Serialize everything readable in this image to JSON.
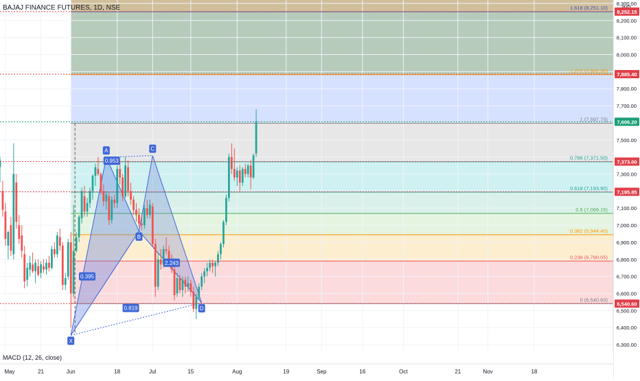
{
  "header": {
    "symbol_title": "BAJAJ FINANCE FUTURES, 1D, NSE"
  },
  "currency": "INR",
  "macd_label": "MACD (12, 26, close)",
  "colors": {
    "up": "#26a69a",
    "down": "#ef5350",
    "price_tag_red": "#e0404a",
    "price_tag_green": "#1b9e78",
    "pattern": "#3d66d6"
  },
  "chart_data": {
    "type": "candlestick",
    "y_axis": {
      "ticks": [
        6300,
        6400,
        6500,
        6600,
        6700,
        6800,
        6900,
        7000,
        7100,
        7200,
        7300,
        7400,
        7500,
        7600,
        7700,
        7800,
        7900,
        8000,
        8100,
        8200,
        8300
      ],
      "tick_labels": [
        "6,300.00",
        "6,400.00",
        "6,500.00",
        "6,600.00",
        "6,700.00",
        "6,800.00",
        "6,900.00",
        "7,000.00",
        "7,100.00",
        "7,200.00",
        "7,300.00",
        "7,400.00",
        "7,500.00",
        "7,600.00",
        "7,700.00",
        "7,800.00",
        "7,900.00",
        "8,000.00",
        "8,100.00",
        "8,200.00",
        "8,300.00"
      ],
      "range": [
        6260,
        8320
      ]
    },
    "x_axis": {
      "labels": [
        {
          "text": "May",
          "day": -13
        },
        {
          "text": "21",
          "day": 0
        },
        {
          "text": "Jun",
          "day": 11
        },
        {
          "text": "18",
          "day": 28
        },
        {
          "text": "Jul",
          "day": 41
        },
        {
          "text": "15",
          "day": 55
        },
        {
          "text": "Aug",
          "day": 72
        },
        {
          "text": "19",
          "day": 90
        },
        {
          "text": "Sep",
          "day": 103
        },
        {
          "text": "16",
          "day": 118
        },
        {
          "text": "Oct",
          "day": 133
        },
        {
          "text": "21",
          "day": 153
        },
        {
          "text": "Nov",
          "day": 164
        },
        {
          "text": "18",
          "day": 181
        }
      ],
      "range": [
        -15,
        210
      ]
    },
    "price_tags": [
      {
        "value": 8252.15,
        "label": "8,252.15",
        "color": "red",
        "line": "dotted"
      },
      {
        "value": 7885.4,
        "label": "7,885.40",
        "color": "red",
        "line": "dotted"
      },
      {
        "value": 7606.2,
        "label": "7,606.20",
        "color": "green",
        "line": "dotted-green"
      },
      {
        "value": 7373.0,
        "label": "7,373.00",
        "color": "red",
        "line": "dotted"
      },
      {
        "value": 7195.85,
        "label": "7,195.85",
        "color": "red",
        "line": "dotted"
      },
      {
        "value": 6540.6,
        "label": "6,540.60",
        "color": "red",
        "line": "dotted"
      }
    ],
    "fib_levels": [
      {
        "label": "1.618 (8,251.10)",
        "value": 8251.1,
        "line": "#3d50b4"
      },
      {
        "label": "1.272 (7,882.30)",
        "value": 7882.3,
        "line": "#ff9800"
      },
      {
        "label": "1 (7,597.75)",
        "value": 7597.75,
        "line": "#808080"
      },
      {
        "label": "0.786 (7,371.50)",
        "value": 7371.5,
        "line": "#26a69a"
      },
      {
        "label": "0.618 (7,193.90)",
        "value": 7193.9,
        "line": "#26a69a"
      },
      {
        "label": "0.5 (7,069.15)",
        "value": 7069.15,
        "line": "#4caf50"
      },
      {
        "label": "0.382 (6,944.40)",
        "value": 6944.4,
        "line": "#ff9800"
      },
      {
        "label": "0.236 (6,790.05)",
        "value": 6790.05,
        "line": "#ef5350"
      },
      {
        "label": "0 (6,540.60)",
        "value": 6540.6,
        "line": "#808080"
      }
    ],
    "fib_zones": [
      {
        "from": 8251.1,
        "to": 8320,
        "color": "#c9b48a"
      },
      {
        "from": 7882.3,
        "to": 8251.1,
        "color": "#a9c2ae"
      },
      {
        "from": 7597.75,
        "to": 7882.3,
        "color": "#cfdcff"
      },
      {
        "from": 7371.5,
        "to": 7597.75,
        "color": "#e3e3e3"
      },
      {
        "from": 7193.9,
        "to": 7371.5,
        "color": "#c8efef"
      },
      {
        "from": 7069.15,
        "to": 7193.9,
        "color": "#d2efe6"
      },
      {
        "from": 6944.4,
        "to": 7069.15,
        "color": "#e1f2dc"
      },
      {
        "from": 6790.05,
        "to": 6944.4,
        "color": "#fdebc8"
      },
      {
        "from": 6540.6,
        "to": 6790.05,
        "color": "#fbd5d6"
      }
    ],
    "fib_start_day": 11,
    "pattern_points": [
      {
        "label": "X",
        "day": 11,
        "value": 6355
      },
      {
        "label": "A",
        "day": 24,
        "value": 7398
      },
      {
        "label": "B",
        "day": 36,
        "value": 6965
      },
      {
        "label": "C",
        "day": 41,
        "value": 7408
      },
      {
        "label": "D",
        "day": 59,
        "value": 6545
      }
    ],
    "pattern_ratios": [
      {
        "label": "0.395",
        "day": 17,
        "value": 6700
      },
      {
        "label": "0.953",
        "day": 26,
        "value": 7378
      },
      {
        "label": "2.243",
        "day": 48,
        "value": 6780
      },
      {
        "label": "0.819",
        "day": 33,
        "value": 6515
      }
    ],
    "candles": [
      {
        "d": -15,
        "o": 7340,
        "h": 7400,
        "l": 7250,
        "c": 7380
      },
      {
        "d": -14,
        "o": 7200,
        "h": 7260,
        "l": 7050,
        "c": 7090
      },
      {
        "d": -13,
        "o": 7080,
        "h": 7130,
        "l": 6880,
        "c": 6920
      },
      {
        "d": -12,
        "o": 6880,
        "h": 6970,
        "l": 6800,
        "c": 6960
      },
      {
        "d": -11,
        "o": 7000,
        "h": 7050,
        "l": 6820,
        "c": 6850
      },
      {
        "d": -10,
        "o": 6830,
        "h": 7480,
        "l": 6800,
        "c": 7300
      },
      {
        "d": -9,
        "o": 7250,
        "h": 7300,
        "l": 6980,
        "c": 7020
      },
      {
        "d": -8,
        "o": 7000,
        "h": 7060,
        "l": 6890,
        "c": 6920
      },
      {
        "d": -7,
        "o": 6940,
        "h": 7000,
        "l": 6810,
        "c": 6850
      },
      {
        "d": -6,
        "o": 6830,
        "h": 6880,
        "l": 6630,
        "c": 6670
      },
      {
        "d": -5,
        "o": 6680,
        "h": 6780,
        "l": 6640,
        "c": 6750
      },
      {
        "d": -4,
        "o": 6740,
        "h": 6820,
        "l": 6700,
        "c": 6780
      },
      {
        "d": -3,
        "o": 6770,
        "h": 6840,
        "l": 6720,
        "c": 6730
      },
      {
        "d": -2,
        "o": 6730,
        "h": 6800,
        "l": 6660,
        "c": 6780
      },
      {
        "d": -1,
        "o": 6760,
        "h": 6800,
        "l": 6700,
        "c": 6710
      },
      {
        "d": 0,
        "o": 6720,
        "h": 6790,
        "l": 6690,
        "c": 6770
      },
      {
        "d": 1,
        "o": 6760,
        "h": 6800,
        "l": 6720,
        "c": 6740
      },
      {
        "d": 2,
        "o": 6740,
        "h": 6800,
        "l": 6710,
        "c": 6780
      },
      {
        "d": 3,
        "o": 6780,
        "h": 6820,
        "l": 6730,
        "c": 6750
      },
      {
        "d": 4,
        "o": 6750,
        "h": 6880,
        "l": 6740,
        "c": 6860
      },
      {
        "d": 5,
        "o": 6860,
        "h": 6900,
        "l": 6810,
        "c": 6830
      },
      {
        "d": 6,
        "o": 6830,
        "h": 6960,
        "l": 6810,
        "c": 6940
      },
      {
        "d": 7,
        "o": 6930,
        "h": 6980,
        "l": 6850,
        "c": 6880
      },
      {
        "d": 8,
        "o": 6880,
        "h": 6900,
        "l": 6620,
        "c": 6650
      },
      {
        "d": 9,
        "o": 6650,
        "h": 6720,
        "l": 6620,
        "c": 6690
      },
      {
        "d": 10,
        "o": 6700,
        "h": 6920,
        "l": 6680,
        "c": 6900
      },
      {
        "d": 11,
        "o": 6900,
        "h": 6960,
        "l": 6400,
        "c": 6600
      },
      {
        "d": 12,
        "o": 6600,
        "h": 7120,
        "l": 6580,
        "c": 6850
      },
      {
        "d": 13,
        "o": 6850,
        "h": 6960,
        "l": 6840,
        "c": 6930
      },
      {
        "d": 14,
        "o": 6930,
        "h": 7060,
        "l": 6900,
        "c": 7050
      },
      {
        "d": 15,
        "o": 7040,
        "h": 7220,
        "l": 7010,
        "c": 7200
      },
      {
        "d": 16,
        "o": 7170,
        "h": 7230,
        "l": 7050,
        "c": 7080
      },
      {
        "d": 17,
        "o": 7080,
        "h": 7160,
        "l": 7050,
        "c": 7130
      },
      {
        "d": 18,
        "o": 7130,
        "h": 7220,
        "l": 7100,
        "c": 7200
      },
      {
        "d": 19,
        "o": 7200,
        "h": 7300,
        "l": 7150,
        "c": 7290
      },
      {
        "d": 20,
        "o": 7290,
        "h": 7360,
        "l": 7230,
        "c": 7340
      },
      {
        "d": 21,
        "o": 7330,
        "h": 7400,
        "l": 7290,
        "c": 7300
      },
      {
        "d": 22,
        "o": 7300,
        "h": 7310,
        "l": 7180,
        "c": 7200
      },
      {
        "d": 23,
        "o": 7200,
        "h": 7240,
        "l": 7110,
        "c": 7140
      },
      {
        "d": 24,
        "o": 7140,
        "h": 7200,
        "l": 7090,
        "c": 7180
      },
      {
        "d": 25,
        "o": 7170,
        "h": 7190,
        "l": 7000,
        "c": 7030
      },
      {
        "d": 26,
        "o": 7030,
        "h": 7170,
        "l": 7010,
        "c": 7150
      },
      {
        "d": 27,
        "o": 7150,
        "h": 7180,
        "l": 7100,
        "c": 7130
      },
      {
        "d": 28,
        "o": 7130,
        "h": 7350,
        "l": 7100,
        "c": 7330
      },
      {
        "d": 29,
        "o": 7330,
        "h": 7380,
        "l": 7240,
        "c": 7280
      },
      {
        "d": 30,
        "o": 7280,
        "h": 7300,
        "l": 7140,
        "c": 7170
      },
      {
        "d": 31,
        "o": 7170,
        "h": 7400,
        "l": 7160,
        "c": 7350
      },
      {
        "d": 32,
        "o": 7340,
        "h": 7380,
        "l": 7170,
        "c": 7200
      },
      {
        "d": 33,
        "o": 7200,
        "h": 7250,
        "l": 7120,
        "c": 7150
      },
      {
        "d": 34,
        "o": 7150,
        "h": 7170,
        "l": 7060,
        "c": 7090
      },
      {
        "d": 35,
        "o": 7090,
        "h": 7130,
        "l": 7020,
        "c": 7060
      },
      {
        "d": 36,
        "o": 7060,
        "h": 7100,
        "l": 6990,
        "c": 7010
      },
      {
        "d": 37,
        "o": 7010,
        "h": 7060,
        "l": 6970,
        "c": 7000
      },
      {
        "d": 38,
        "o": 7000,
        "h": 7120,
        "l": 6980,
        "c": 7100
      },
      {
        "d": 39,
        "o": 7100,
        "h": 7150,
        "l": 7040,
        "c": 7060
      },
      {
        "d": 40,
        "o": 7060,
        "h": 7150,
        "l": 7040,
        "c": 7120
      },
      {
        "d": 41,
        "o": 7110,
        "h": 7130,
        "l": 6870,
        "c": 6890
      },
      {
        "d": 42,
        "o": 6890,
        "h": 6920,
        "l": 6580,
        "c": 6640
      },
      {
        "d": 43,
        "o": 6640,
        "h": 6840,
        "l": 6620,
        "c": 6800
      },
      {
        "d": 44,
        "o": 6800,
        "h": 6860,
        "l": 6740,
        "c": 6770
      },
      {
        "d": 45,
        "o": 6770,
        "h": 6880,
        "l": 6750,
        "c": 6860
      },
      {
        "d": 46,
        "o": 6860,
        "h": 6930,
        "l": 6830,
        "c": 6850
      },
      {
        "d": 47,
        "o": 6850,
        "h": 6880,
        "l": 6780,
        "c": 6800
      },
      {
        "d": 48,
        "o": 6800,
        "h": 6830,
        "l": 6720,
        "c": 6740
      },
      {
        "d": 49,
        "o": 6740,
        "h": 6760,
        "l": 6560,
        "c": 6590
      },
      {
        "d": 50,
        "o": 6600,
        "h": 6720,
        "l": 6580,
        "c": 6690
      },
      {
        "d": 51,
        "o": 6690,
        "h": 6710,
        "l": 6600,
        "c": 6620
      },
      {
        "d": 52,
        "o": 6620,
        "h": 6700,
        "l": 6580,
        "c": 6680
      },
      {
        "d": 53,
        "o": 6680,
        "h": 6700,
        "l": 6600,
        "c": 6640
      },
      {
        "d": 54,
        "o": 6640,
        "h": 6700,
        "l": 6610,
        "c": 6660
      },
      {
        "d": 55,
        "o": 6660,
        "h": 6680,
        "l": 6580,
        "c": 6610
      },
      {
        "d": 56,
        "o": 6610,
        "h": 6640,
        "l": 6490,
        "c": 6510
      },
      {
        "d": 57,
        "o": 6510,
        "h": 6600,
        "l": 6450,
        "c": 6580
      },
      {
        "d": 58,
        "o": 6580,
        "h": 6660,
        "l": 6560,
        "c": 6640
      },
      {
        "d": 59,
        "o": 6640,
        "h": 6720,
        "l": 6620,
        "c": 6700
      },
      {
        "d": 60,
        "o": 6700,
        "h": 6750,
        "l": 6660,
        "c": 6730
      },
      {
        "d": 61,
        "o": 6730,
        "h": 6780,
        "l": 6700,
        "c": 6750
      },
      {
        "d": 62,
        "o": 6750,
        "h": 6800,
        "l": 6730,
        "c": 6780
      },
      {
        "d": 63,
        "o": 6780,
        "h": 6800,
        "l": 6720,
        "c": 6760
      },
      {
        "d": 64,
        "o": 6760,
        "h": 6790,
        "l": 6700,
        "c": 6780
      },
      {
        "d": 65,
        "o": 6780,
        "h": 6850,
        "l": 6760,
        "c": 6830
      },
      {
        "d": 66,
        "o": 6830,
        "h": 6900,
        "l": 6800,
        "c": 6890
      },
      {
        "d": 67,
        "o": 6890,
        "h": 7030,
        "l": 6870,
        "c": 7020
      },
      {
        "d": 68,
        "o": 7020,
        "h": 7180,
        "l": 7000,
        "c": 7160
      },
      {
        "d": 69,
        "o": 7160,
        "h": 7420,
        "l": 7140,
        "c": 7400
      },
      {
        "d": 70,
        "o": 7400,
        "h": 7480,
        "l": 7300,
        "c": 7330
      },
      {
        "d": 71,
        "o": 7330,
        "h": 7450,
        "l": 7260,
        "c": 7280
      },
      {
        "d": 72,
        "o": 7280,
        "h": 7340,
        "l": 7230,
        "c": 7320
      },
      {
        "d": 73,
        "o": 7320,
        "h": 7350,
        "l": 7200,
        "c": 7250
      },
      {
        "d": 74,
        "o": 7250,
        "h": 7340,
        "l": 7230,
        "c": 7330
      },
      {
        "d": 75,
        "o": 7330,
        "h": 7360,
        "l": 7280,
        "c": 7300
      },
      {
        "d": 76,
        "o": 7300,
        "h": 7360,
        "l": 7280,
        "c": 7350
      },
      {
        "d": 77,
        "o": 7350,
        "h": 7380,
        "l": 7210,
        "c": 7280
      },
      {
        "d": 78,
        "o": 7280,
        "h": 7420,
        "l": 7270,
        "c": 7410
      },
      {
        "d": 79,
        "o": 7420,
        "h": 7680,
        "l": 7400,
        "c": 7610
      }
    ]
  }
}
